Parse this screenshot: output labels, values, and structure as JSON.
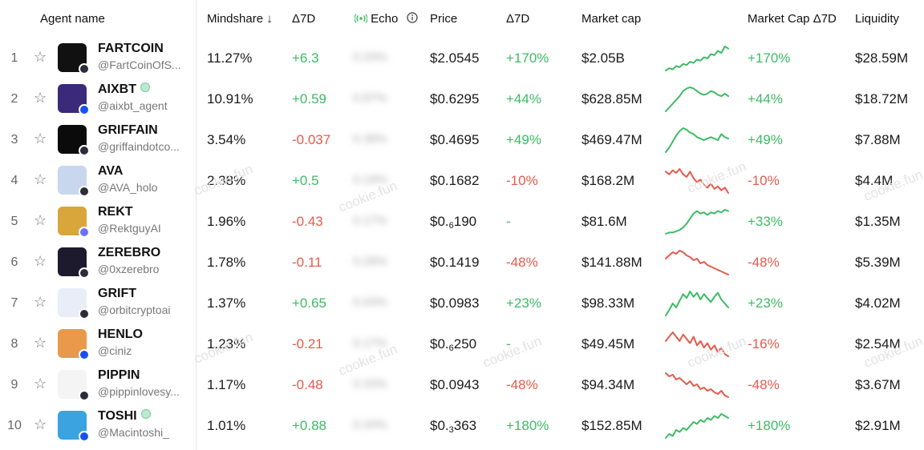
{
  "header": {
    "agent_name": "Agent name",
    "mindshare": "Mindshare",
    "sort_arrow": "↓",
    "delta7d": "Δ7D",
    "echo": "Echo",
    "price": "Price",
    "price_delta7d": "Δ7D",
    "market_cap": "Market cap",
    "market_cap_delta7d": "Market Cap Δ7D",
    "liquidity": "Liquidity"
  },
  "watermark": "cookie.fun",
  "colors": {
    "positive": "#3dbb63",
    "negative": "#e65a4b",
    "verified": "#79c99e"
  },
  "rows": [
    {
      "rank": "1",
      "name": "FARTCOIN",
      "verified": false,
      "handle": "@FartCoinOfS...",
      "avatar_color": "#111111",
      "chain": "sol",
      "mindshare": "11.27%",
      "delta": "+6.3",
      "delta_sign": "pos",
      "echo": "0.33%",
      "price": "$2.0545",
      "price_sub": "",
      "price_tail": "",
      "price_delta": "+170%",
      "price_delta_sign": "pos",
      "mcap": "$2.05B",
      "mcap_delta": "+170%",
      "mcap_delta_sign": "pos",
      "liquidity": "$28.59M",
      "spark": [
        20,
        22,
        21,
        24,
        23,
        26,
        25,
        28,
        27,
        30,
        29,
        32,
        31,
        35,
        34,
        38,
        36,
        42,
        40
      ]
    },
    {
      "rank": "2",
      "name": "AIXBT",
      "verified": true,
      "handle": "@aixbt_agent",
      "avatar_color": "#3b2a7a",
      "chain": "base",
      "mindshare": "10.91%",
      "delta": "+0.59",
      "delta_sign": "pos",
      "echo": "0.87%",
      "price": "$0.6295",
      "price_sub": "",
      "price_tail": "",
      "price_delta": "+44%",
      "price_delta_sign": "pos",
      "mcap": "$628.85M",
      "mcap_delta": "+44%",
      "mcap_delta_sign": "pos",
      "liquidity": "$18.72M",
      "spark": [
        22,
        25,
        28,
        31,
        34,
        38,
        40,
        41,
        40,
        38,
        36,
        35,
        36,
        38,
        37,
        35,
        34,
        36,
        34
      ]
    },
    {
      "rank": "3",
      "name": "GRIFFAIN",
      "verified": false,
      "handle": "@griffaindotco...",
      "avatar_color": "#0b0b0b",
      "chain": "sol",
      "mindshare": "3.54%",
      "delta": "-0.037",
      "delta_sign": "neg",
      "echo": "0.38%",
      "price": "$0.4695",
      "price_sub": "",
      "price_tail": "",
      "price_delta": "+49%",
      "price_delta_sign": "pos",
      "mcap": "$469.47M",
      "mcap_delta": "+49%",
      "mcap_delta_sign": "pos",
      "liquidity": "$7.88M",
      "spark": [
        24,
        27,
        31,
        35,
        38,
        40,
        39,
        37,
        36,
        34,
        33,
        32,
        33,
        34,
        33,
        32,
        36,
        34,
        33
      ]
    },
    {
      "rank": "4",
      "name": "AVA",
      "verified": false,
      "handle": "@AVA_holo",
      "avatar_color": "#c8d7ee",
      "chain": "sol",
      "mindshare": "2.38%",
      "delta": "+0.5",
      "delta_sign": "pos",
      "echo": "0.19%",
      "price": "$0.1682",
      "price_sub": "",
      "price_tail": "",
      "price_delta": "-10%",
      "price_delta_sign": "neg",
      "mcap": "$168.2M",
      "mcap_delta": "-10%",
      "mcap_delta_sign": "neg",
      "liquidity": "$4.4M",
      "spark": [
        40,
        38,
        41,
        39,
        42,
        38,
        36,
        40,
        35,
        32,
        34,
        30,
        28,
        31,
        27,
        29,
        26,
        28,
        24
      ]
    },
    {
      "rank": "5",
      "name": "REKT",
      "verified": false,
      "handle": "@RektguyAI",
      "avatar_color": "#d9a63b",
      "chain": "eth",
      "mindshare": "1.96%",
      "delta": "-0.43",
      "delta_sign": "neg",
      "echo": "0.17%",
      "price": "$0.",
      "price_sub": "6",
      "price_tail": "190",
      "price_delta": "-",
      "price_delta_sign": "neu",
      "mcap": "$81.6M",
      "mcap_delta": "+33%",
      "mcap_delta_sign": "pos",
      "liquidity": "$1.35M",
      "spark": [
        20,
        21,
        21,
        22,
        23,
        25,
        28,
        32,
        36,
        38,
        36,
        37,
        35,
        37,
        36,
        38,
        37,
        39,
        38
      ]
    },
    {
      "rank": "6",
      "name": "ZEREBRO",
      "verified": false,
      "handle": "@0xzerebro",
      "avatar_color": "#1e1a2e",
      "chain": "sol",
      "mindshare": "1.78%",
      "delta": "-0.11",
      "delta_sign": "neg",
      "echo": "0.28%",
      "price": "$0.1419",
      "price_sub": "",
      "price_tail": "",
      "price_delta": "-48%",
      "price_delta_sign": "neg",
      "mcap": "$141.88M",
      "mcap_delta": "-48%",
      "mcap_delta_sign": "neg",
      "liquidity": "$5.39M",
      "spark": [
        34,
        36,
        38,
        37,
        39,
        38,
        36,
        35,
        33,
        34,
        31,
        32,
        30,
        29,
        28,
        27,
        26,
        25,
        24
      ]
    },
    {
      "rank": "7",
      "name": "GRIFT",
      "verified": false,
      "handle": "@orbitcryptoai",
      "avatar_color": "#e9edf7",
      "chain": "sol",
      "mindshare": "1.37%",
      "delta": "+0.65",
      "delta_sign": "pos",
      "echo": "0.93%",
      "price": "$0.0983",
      "price_sub": "",
      "price_tail": "",
      "price_delta": "+23%",
      "price_delta_sign": "pos",
      "mcap": "$98.33M",
      "mcap_delta": "+23%",
      "mcap_delta_sign": "pos",
      "liquidity": "$4.02M",
      "spark": [
        24,
        28,
        33,
        30,
        35,
        40,
        37,
        42,
        38,
        41,
        36,
        40,
        37,
        34,
        38,
        41,
        36,
        33,
        30
      ]
    },
    {
      "rank": "8",
      "name": "HENLO",
      "verified": false,
      "handle": "@ciniz",
      "avatar_color": "#e89a4a",
      "chain": "base",
      "mindshare": "1.23%",
      "delta": "-0.21",
      "delta_sign": "neg",
      "echo": "0.17%",
      "price": "$0.",
      "price_sub": "6",
      "price_tail": "250",
      "price_delta": "-",
      "price_delta_sign": "neu",
      "mcap": "$49.45M",
      "mcap_delta": "-16%",
      "mcap_delta_sign": "neg",
      "liquidity": "$2.54M",
      "spark": [
        36,
        38,
        40,
        38,
        36,
        39,
        37,
        35,
        38,
        34,
        36,
        33,
        35,
        32,
        34,
        31,
        33,
        30,
        29
      ]
    },
    {
      "rank": "9",
      "name": "PIPPIN",
      "verified": false,
      "handle": "@pippinlovesy...",
      "avatar_color": "#f4f4f4",
      "chain": "sol",
      "mindshare": "1.17%",
      "delta": "-0.48",
      "delta_sign": "neg",
      "echo": "0.33%",
      "price": "$0.0943",
      "price_sub": "",
      "price_tail": "",
      "price_delta": "-48%",
      "price_delta_sign": "neg",
      "mcap": "$94.34M",
      "mcap_delta": "-48%",
      "mcap_delta_sign": "neg",
      "liquidity": "$3.67M",
      "spark": [
        40,
        38,
        39,
        36,
        37,
        35,
        33,
        35,
        32,
        33,
        30,
        31,
        29,
        30,
        28,
        27,
        29,
        26,
        25
      ]
    },
    {
      "rank": "10",
      "name": "TOSHI",
      "verified": true,
      "handle": "@Macintoshi_",
      "avatar_color": "#3aa3e0",
      "chain": "base",
      "mindshare": "1.01%",
      "delta": "+0.88",
      "delta_sign": "pos",
      "echo": "0.34%",
      "price": "$0.",
      "price_sub": "3",
      "price_tail": "363",
      "price_delta": "+180%",
      "price_delta_sign": "pos",
      "mcap": "$152.85M",
      "mcap_delta": "+180%",
      "mcap_delta_sign": "pos",
      "liquidity": "$2.91M",
      "spark": [
        22,
        24,
        23,
        26,
        25,
        27,
        26,
        28,
        30,
        29,
        31,
        30,
        32,
        31,
        33,
        32,
        34,
        33,
        32
      ]
    }
  ]
}
